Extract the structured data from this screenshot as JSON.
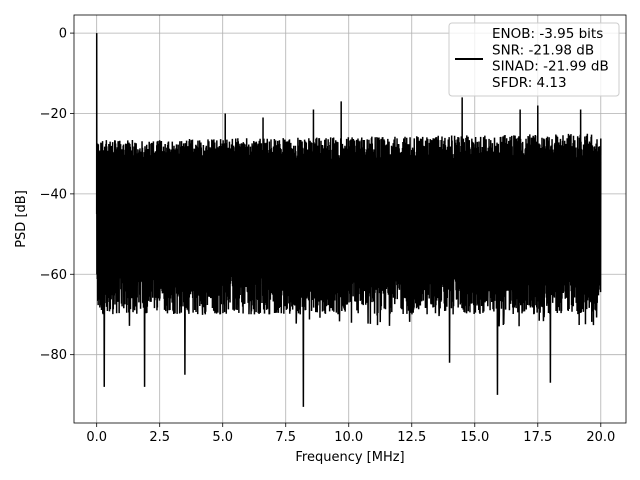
{
  "chart_data": {
    "type": "line",
    "title": "",
    "xlabel": "Frequency [MHz]",
    "ylabel": "PSD [dB]",
    "xlim": [
      -0.9,
      21.0
    ],
    "ylim": [
      -97,
      4.5
    ],
    "xticks": [
      0.0,
      2.5,
      5.0,
      7.5,
      10.0,
      12.5,
      15.0,
      17.5,
      20.0
    ],
    "xtick_labels": [
      "0.0",
      "2.5",
      "5.0",
      "7.5",
      "10.0",
      "12.5",
      "15.0",
      "17.5",
      "20.0"
    ],
    "yticks": [
      0,
      -20,
      -40,
      -60,
      -80
    ],
    "ytick_labels": [
      "0",
      "−20",
      "−40",
      "−60",
      "−80"
    ],
    "grid": true,
    "legend_position": "top-right",
    "series": [
      {
        "label_lines": [
          "ENOB: -3.95 bits",
          "SNR: -21.98 dB",
          "SINAD: -21.99 dB",
          "SFDR: 4.13"
        ],
        "color": "#000000",
        "x_range": [
          0.0,
          20.0
        ],
        "peak": {
          "x": 0.0,
          "y": 0.0
        },
        "floor_upper_db": -30,
        "floor_lower_db": -65,
        "spurs": [
          {
            "x": 9.7,
            "y": -17
          },
          {
            "x": 14.5,
            "y": -16
          },
          {
            "x": 16.8,
            "y": -19
          },
          {
            "x": 17.5,
            "y": -18
          },
          {
            "x": 8.6,
            "y": -19
          },
          {
            "x": 19.2,
            "y": -19
          },
          {
            "x": 5.1,
            "y": -20
          },
          {
            "x": 6.6,
            "y": -21
          },
          {
            "x": 8.2,
            "y": -93
          },
          {
            "x": 15.9,
            "y": -90
          },
          {
            "x": 1.9,
            "y": -88
          },
          {
            "x": 0.3,
            "y": -88
          },
          {
            "x": 18.0,
            "y": -87
          },
          {
            "x": 14.0,
            "y": -82
          },
          {
            "x": 3.5,
            "y": -85
          }
        ]
      }
    ]
  }
}
